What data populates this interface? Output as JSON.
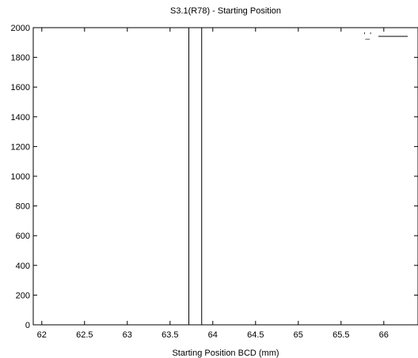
{
  "chart_data": {
    "type": "bar",
    "title": "S3.1(R78) - Starting Position",
    "xlabel": "Starting Position BCD (mm)",
    "ylabel": "",
    "xlim": [
      61.9,
      66.4
    ],
    "ylim": [
      0,
      2000
    ],
    "xticks": [
      "62",
      "62.5",
      "63",
      "63.5",
      "64",
      "64.5",
      "65",
      "65.5",
      "66"
    ],
    "yticks": [
      "0",
      "200",
      "400",
      "600",
      "800",
      "1000",
      "1200",
      "1400",
      "1600",
      "1800",
      "2000"
    ],
    "bars": [
      {
        "x0": 63.72,
        "x1": 63.87,
        "value": 2000
      }
    ],
    "legend": {
      "label": "'_'",
      "placement": "top-right"
    },
    "grid": false,
    "colors": {
      "line": "#000000",
      "background": "#ffffff"
    }
  }
}
